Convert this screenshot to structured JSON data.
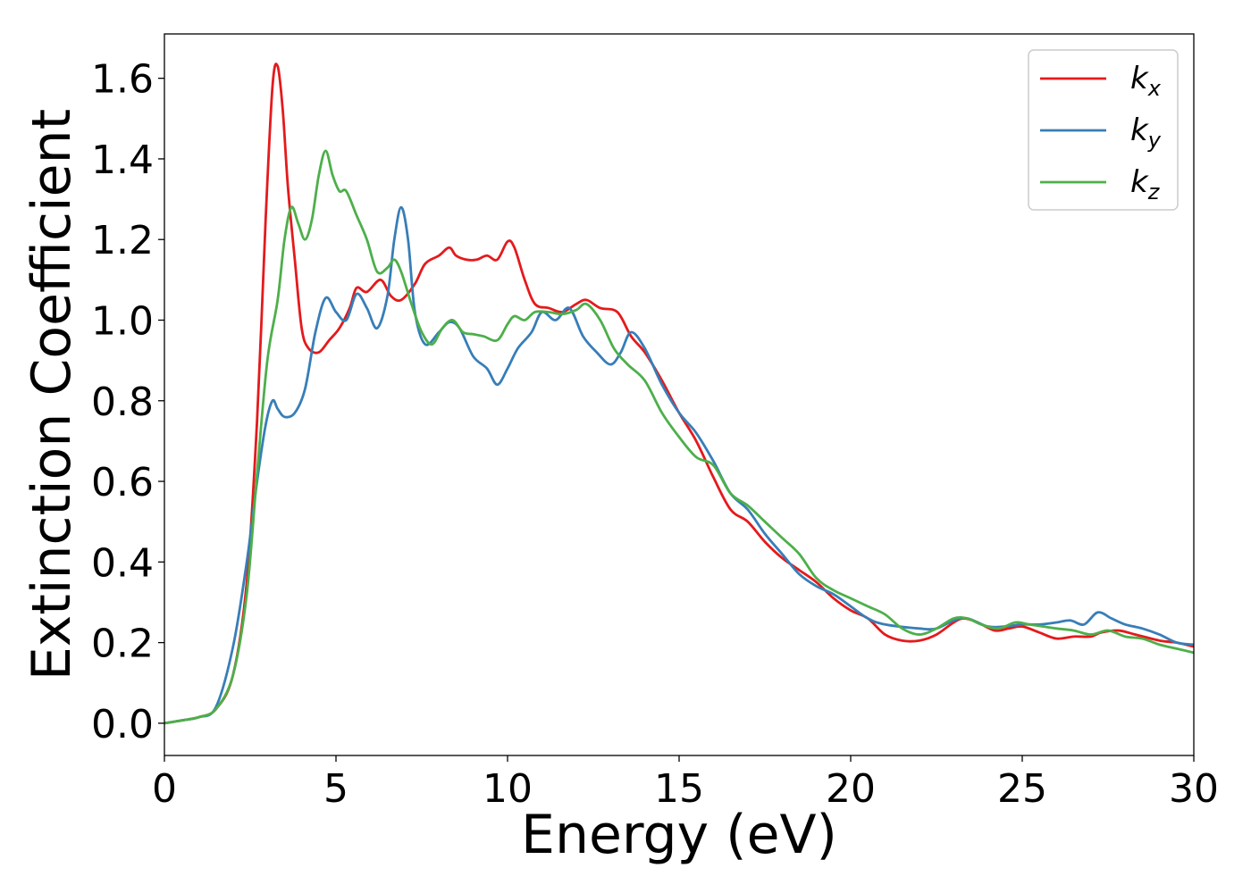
{
  "chart_data": {
    "type": "line",
    "xlabel": "Energy (eV)",
    "ylabel": "Extinction Coefficient",
    "xlim": [
      0,
      30
    ],
    "ylim": [
      -0.08,
      1.71
    ],
    "xticks": [
      0,
      5,
      10,
      15,
      20,
      25,
      30
    ],
    "xtick_labels": [
      "0",
      "5",
      "10",
      "15",
      "20",
      "25",
      "30"
    ],
    "yticks": [
      0.0,
      0.2,
      0.4,
      0.6,
      0.8,
      1.0,
      1.2,
      1.4,
      1.6
    ],
    "ytick_labels": [
      "0.0",
      "0.2",
      "0.4",
      "0.6",
      "0.8",
      "1.0",
      "1.2",
      "1.4",
      "1.6"
    ],
    "grid": false,
    "legend_position": "top-right",
    "series": [
      {
        "name": "k_x",
        "label_main": "k",
        "label_sub": "x",
        "color": "#e41a1c",
        "points": [
          [
            0,
            0
          ],
          [
            0.5,
            0.007
          ],
          [
            1.0,
            0.015
          ],
          [
            1.5,
            0.035
          ],
          [
            2.0,
            0.12
          ],
          [
            2.4,
            0.35
          ],
          [
            2.7,
            0.75
          ],
          [
            2.95,
            1.25
          ],
          [
            3.15,
            1.58
          ],
          [
            3.3,
            1.63
          ],
          [
            3.45,
            1.52
          ],
          [
            3.6,
            1.33
          ],
          [
            3.8,
            1.15
          ],
          [
            4.0,
            0.98
          ],
          [
            4.2,
            0.93
          ],
          [
            4.5,
            0.92
          ],
          [
            4.8,
            0.95
          ],
          [
            5.1,
            0.98
          ],
          [
            5.4,
            1.03
          ],
          [
            5.6,
            1.08
          ],
          [
            5.9,
            1.07
          ],
          [
            6.3,
            1.1
          ],
          [
            6.6,
            1.06
          ],
          [
            6.9,
            1.05
          ],
          [
            7.3,
            1.09
          ],
          [
            7.6,
            1.14
          ],
          [
            8.0,
            1.16
          ],
          [
            8.3,
            1.18
          ],
          [
            8.5,
            1.16
          ],
          [
            8.8,
            1.15
          ],
          [
            9.1,
            1.15
          ],
          [
            9.4,
            1.16
          ],
          [
            9.7,
            1.15
          ],
          [
            10.0,
            1.195
          ],
          [
            10.2,
            1.18
          ],
          [
            10.5,
            1.1
          ],
          [
            10.8,
            1.04
          ],
          [
            11.2,
            1.03
          ],
          [
            11.6,
            1.02
          ],
          [
            12.0,
            1.04
          ],
          [
            12.3,
            1.05
          ],
          [
            12.7,
            1.03
          ],
          [
            13.2,
            1.02
          ],
          [
            13.6,
            0.96
          ],
          [
            14.0,
            0.92
          ],
          [
            14.5,
            0.85
          ],
          [
            15.0,
            0.77
          ],
          [
            15.5,
            0.7
          ],
          [
            16.0,
            0.61
          ],
          [
            16.5,
            0.53
          ],
          [
            17.0,
            0.5
          ],
          [
            17.5,
            0.45
          ],
          [
            18.0,
            0.41
          ],
          [
            18.5,
            0.38
          ],
          [
            19.0,
            0.35
          ],
          [
            19.5,
            0.31
          ],
          [
            20.0,
            0.28
          ],
          [
            20.5,
            0.26
          ],
          [
            21.0,
            0.22
          ],
          [
            21.5,
            0.205
          ],
          [
            22.0,
            0.205
          ],
          [
            22.5,
            0.22
          ],
          [
            23.0,
            0.25
          ],
          [
            23.3,
            0.26
          ],
          [
            23.7,
            0.25
          ],
          [
            24.2,
            0.23
          ],
          [
            24.6,
            0.235
          ],
          [
            25.0,
            0.24
          ],
          [
            25.5,
            0.225
          ],
          [
            26.0,
            0.21
          ],
          [
            26.5,
            0.215
          ],
          [
            27.0,
            0.215
          ],
          [
            27.3,
            0.225
          ],
          [
            27.8,
            0.23
          ],
          [
            28.3,
            0.22
          ],
          [
            29.0,
            0.205
          ],
          [
            29.5,
            0.2
          ],
          [
            30.0,
            0.19
          ]
        ]
      },
      {
        "name": "k_y",
        "label_main": "k",
        "label_sub": "y",
        "color": "#377eb8",
        "points": [
          [
            0,
            0
          ],
          [
            0.5,
            0.007
          ],
          [
            1.0,
            0.015
          ],
          [
            1.5,
            0.04
          ],
          [
            2.0,
            0.19
          ],
          [
            2.4,
            0.4
          ],
          [
            2.7,
            0.6
          ],
          [
            2.95,
            0.74
          ],
          [
            3.15,
            0.8
          ],
          [
            3.3,
            0.78
          ],
          [
            3.5,
            0.76
          ],
          [
            3.8,
            0.77
          ],
          [
            4.1,
            0.83
          ],
          [
            4.4,
            0.97
          ],
          [
            4.7,
            1.055
          ],
          [
            5.0,
            1.02
          ],
          [
            5.3,
            1.0
          ],
          [
            5.6,
            1.065
          ],
          [
            5.9,
            1.03
          ],
          [
            6.2,
            0.98
          ],
          [
            6.5,
            1.06
          ],
          [
            6.7,
            1.2
          ],
          [
            6.9,
            1.28
          ],
          [
            7.1,
            1.2
          ],
          [
            7.3,
            1.02
          ],
          [
            7.6,
            0.94
          ],
          [
            8.0,
            0.97
          ],
          [
            8.3,
            0.995
          ],
          [
            8.6,
            0.98
          ],
          [
            9.0,
            0.91
          ],
          [
            9.4,
            0.88
          ],
          [
            9.7,
            0.84
          ],
          [
            10.0,
            0.88
          ],
          [
            10.3,
            0.93
          ],
          [
            10.7,
            0.97
          ],
          [
            11.0,
            1.02
          ],
          [
            11.4,
            1.0
          ],
          [
            11.8,
            1.03
          ],
          [
            12.2,
            0.96
          ],
          [
            12.6,
            0.92
          ],
          [
            13.0,
            0.89
          ],
          [
            13.3,
            0.92
          ],
          [
            13.6,
            0.97
          ],
          [
            14.0,
            0.93
          ],
          [
            14.5,
            0.84
          ],
          [
            15.0,
            0.77
          ],
          [
            15.5,
            0.72
          ],
          [
            16.0,
            0.65
          ],
          [
            16.5,
            0.57
          ],
          [
            17.0,
            0.53
          ],
          [
            17.5,
            0.47
          ],
          [
            18.0,
            0.42
          ],
          [
            18.5,
            0.37
          ],
          [
            19.0,
            0.34
          ],
          [
            19.5,
            0.32
          ],
          [
            20.0,
            0.29
          ],
          [
            20.5,
            0.26
          ],
          [
            21.0,
            0.245
          ],
          [
            22.0,
            0.235
          ],
          [
            22.5,
            0.235
          ],
          [
            23.0,
            0.255
          ],
          [
            23.4,
            0.26
          ],
          [
            24.0,
            0.24
          ],
          [
            24.5,
            0.24
          ],
          [
            25.0,
            0.245
          ],
          [
            25.5,
            0.245
          ],
          [
            26.0,
            0.25
          ],
          [
            26.4,
            0.255
          ],
          [
            26.8,
            0.245
          ],
          [
            27.2,
            0.275
          ],
          [
            27.6,
            0.26
          ],
          [
            28.0,
            0.245
          ],
          [
            28.5,
            0.235
          ],
          [
            29.0,
            0.22
          ],
          [
            29.5,
            0.2
          ],
          [
            30.0,
            0.195
          ]
        ]
      },
      {
        "name": "k_z",
        "label_main": "k",
        "label_sub": "z",
        "color": "#4daf4a",
        "points": [
          [
            0,
            0
          ],
          [
            0.5,
            0.007
          ],
          [
            1.0,
            0.015
          ],
          [
            1.5,
            0.035
          ],
          [
            2.0,
            0.12
          ],
          [
            2.4,
            0.32
          ],
          [
            2.7,
            0.62
          ],
          [
            3.0,
            0.9
          ],
          [
            3.3,
            1.05
          ],
          [
            3.5,
            1.2
          ],
          [
            3.7,
            1.28
          ],
          [
            3.9,
            1.24
          ],
          [
            4.1,
            1.2
          ],
          [
            4.3,
            1.25
          ],
          [
            4.5,
            1.36
          ],
          [
            4.7,
            1.42
          ],
          [
            4.9,
            1.36
          ],
          [
            5.1,
            1.32
          ],
          [
            5.3,
            1.32
          ],
          [
            5.6,
            1.26
          ],
          [
            5.9,
            1.2
          ],
          [
            6.2,
            1.12
          ],
          [
            6.5,
            1.13
          ],
          [
            6.7,
            1.15
          ],
          [
            6.9,
            1.12
          ],
          [
            7.2,
            1.04
          ],
          [
            7.5,
            0.97
          ],
          [
            7.8,
            0.94
          ],
          [
            8.1,
            0.98
          ],
          [
            8.4,
            1.0
          ],
          [
            8.7,
            0.97
          ],
          [
            9.0,
            0.965
          ],
          [
            9.3,
            0.96
          ],
          [
            9.7,
            0.95
          ],
          [
            10.0,
            0.99
          ],
          [
            10.2,
            1.01
          ],
          [
            10.5,
            1.0
          ],
          [
            10.8,
            1.02
          ],
          [
            11.2,
            1.02
          ],
          [
            11.6,
            1.015
          ],
          [
            12.0,
            1.025
          ],
          [
            12.3,
            1.04
          ],
          [
            12.7,
            1.0
          ],
          [
            13.1,
            0.93
          ],
          [
            13.5,
            0.89
          ],
          [
            14.0,
            0.85
          ],
          [
            14.5,
            0.77
          ],
          [
            15.0,
            0.71
          ],
          [
            15.5,
            0.66
          ],
          [
            16.0,
            0.64
          ],
          [
            16.5,
            0.57
          ],
          [
            17.0,
            0.54
          ],
          [
            17.5,
            0.5
          ],
          [
            18.0,
            0.46
          ],
          [
            18.5,
            0.42
          ],
          [
            19.0,
            0.36
          ],
          [
            19.5,
            0.33
          ],
          [
            20.0,
            0.31
          ],
          [
            20.5,
            0.29
          ],
          [
            21.0,
            0.27
          ],
          [
            21.5,
            0.235
          ],
          [
            22.0,
            0.22
          ],
          [
            22.5,
            0.235
          ],
          [
            23.0,
            0.26
          ],
          [
            23.4,
            0.26
          ],
          [
            23.8,
            0.245
          ],
          [
            24.3,
            0.235
          ],
          [
            24.8,
            0.25
          ],
          [
            25.2,
            0.245
          ],
          [
            25.6,
            0.24
          ],
          [
            26.0,
            0.235
          ],
          [
            26.5,
            0.23
          ],
          [
            27.0,
            0.22
          ],
          [
            27.5,
            0.23
          ],
          [
            28.0,
            0.215
          ],
          [
            28.5,
            0.21
          ],
          [
            29.0,
            0.195
          ],
          [
            29.5,
            0.185
          ],
          [
            30.0,
            0.175
          ]
        ]
      }
    ]
  }
}
